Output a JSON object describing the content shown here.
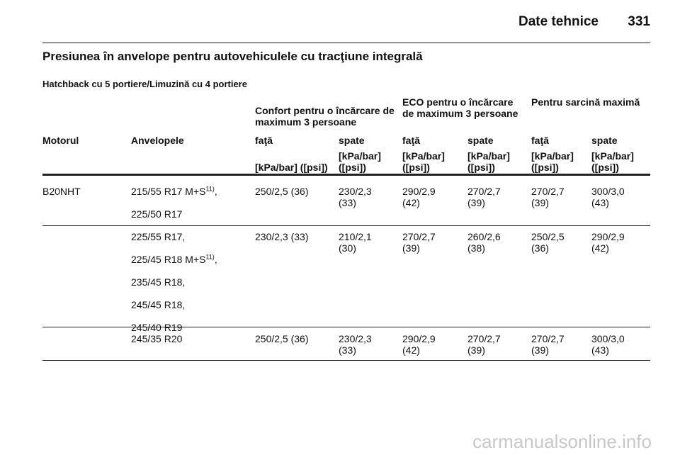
{
  "header": {
    "title": "Date tehnice",
    "page": "331"
  },
  "section_title": "Presiunea în anvelope pentru autovehiculele cu tracţiune integrală",
  "subtitle": "Hatchback cu 5 portiere/Limuzină cu 4 portiere",
  "table": {
    "groups": [
      "Confort pentru o încărcare de maximum 3 persoane",
      "ECO pentru o încărcare de maximum 3 persoane",
      "Pentru sarcină maximă"
    ],
    "columns": [
      "Motorul",
      "Anvelopele",
      "faţă",
      "spate",
      "faţă",
      "spate",
      "faţă",
      "spate"
    ],
    "units": [
      "[kPa/bar] ([psi])",
      "[kPa/bar] ([psi])",
      "[kPa/bar] ([psi])",
      "[kPa/bar] ([psi])",
      "[kPa/bar] ([psi])",
      "[kPa/bar] ([psi])"
    ],
    "rows": [
      {
        "engine": "B20NHT",
        "tyres": [
          {
            "text": "215/55 R17 M+S",
            "note": "11)",
            "suffix": ","
          },
          {
            "text": "225/50 R17"
          }
        ],
        "values": [
          "250/2,5 (36)",
          "230/2,3 (33)",
          "290/2,9 (42)",
          "270/2,7 (39)",
          "270/2,7 (39)",
          "300/3,0 (43)"
        ]
      },
      {
        "tyres": [
          {
            "text": "225/55 R17",
            "suffix": ","
          },
          {
            "text": "225/45 R18 M+S",
            "note": "11)",
            "suffix": ","
          },
          {
            "text": "235/45 R18",
            "suffix": ","
          },
          {
            "text": "245/45 R18",
            "suffix": ","
          },
          {
            "text": "245/40 R19"
          }
        ],
        "values": [
          "230/2,3 (33)",
          "210/2,1 (30)",
          "270/2,7 (39)",
          "260/2,6 (38)",
          "250/2,5 (36)",
          "290/2,9 (42)"
        ]
      },
      {
        "tyres": [
          {
            "text": "245/35 R20"
          }
        ],
        "values": [
          "250/2,5 (36)",
          "230/2,3 (33)",
          "290/2,9 (42)",
          "270/2,7 (39)",
          "270/2,7 (39)",
          "300/3,0 (43)"
        ]
      }
    ]
  },
  "watermark": "carmanualsonline.info"
}
